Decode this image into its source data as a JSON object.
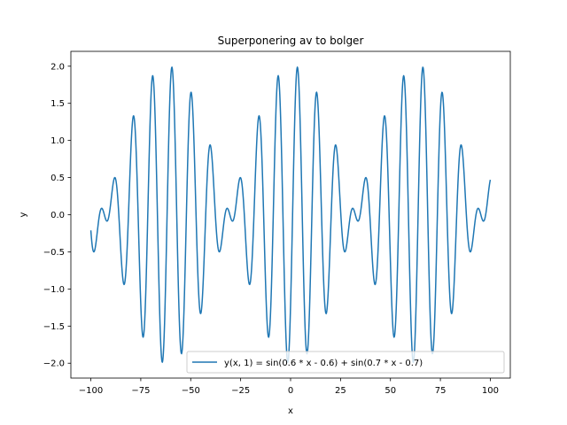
{
  "chart_data": {
    "type": "line",
    "title": "Superponering av to bolger",
    "xlabel": "x",
    "ylabel": "y",
    "xlim": [
      -110,
      110
    ],
    "ylim": [
      -2.2,
      2.2
    ],
    "xticks": [
      -100,
      -75,
      -50,
      -25,
      0,
      25,
      50,
      75,
      100
    ],
    "xtick_labels": [
      "−100",
      "−75",
      "−50",
      "−25",
      "0",
      "25",
      "50",
      "75",
      "100"
    ],
    "yticks": [
      -2.0,
      -1.5,
      -1.0,
      -0.5,
      0.0,
      0.5,
      1.0,
      1.5,
      2.0
    ],
    "ytick_labels": [
      "−2.0",
      "−1.5",
      "−1.0",
      "−0.5",
      "0.0",
      "0.5",
      "1.0",
      "1.5",
      "2.0"
    ],
    "grid": false,
    "legend_position": "lower right",
    "series": [
      {
        "name": "y(x, 1) = sin(0.6 * x - 0.6) + sin(0.7 * x - 0.7)",
        "color": "#1f77b4",
        "function": {
          "k1": 0.6,
          "p1": -0.6,
          "k2": 0.7,
          "p2": -0.7
        },
        "x_range": [
          -100,
          100
        ],
        "samples": 2000
      }
    ]
  }
}
